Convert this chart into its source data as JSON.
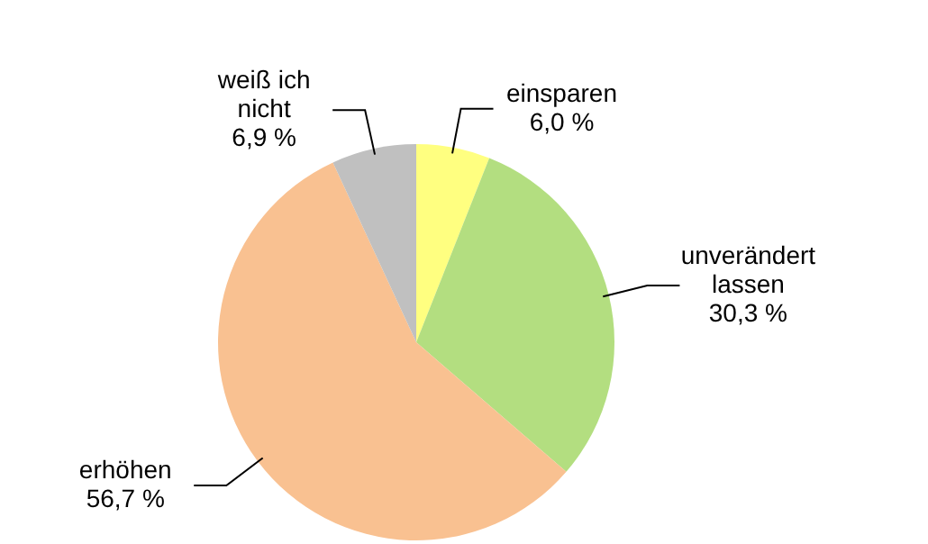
{
  "chart_data": {
    "type": "pie",
    "categories": [
      "einsparen",
      "unverändert lassen",
      "erhöhen",
      "weiß ich nicht"
    ],
    "values": [
      6.0,
      30.3,
      56.7,
      6.9
    ],
    "value_labels": [
      "6,0 %",
      "30,3 %",
      "56,7 %",
      "6,9 %"
    ],
    "colors": [
      "#ffff80",
      "#b3de80",
      "#f9c191",
      "#c0c0c0"
    ]
  }
}
